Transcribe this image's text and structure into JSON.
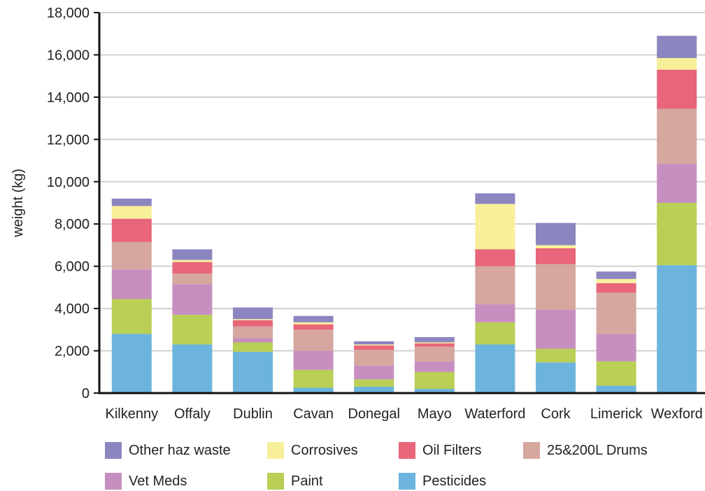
{
  "chart_data": {
    "type": "bar",
    "stacked": true,
    "title": "",
    "xlabel": "",
    "ylabel": "weight (kg)",
    "ylim": [
      0,
      18000
    ],
    "yticks": [
      0,
      2000,
      4000,
      6000,
      8000,
      10000,
      12000,
      14000,
      16000,
      18000
    ],
    "ytick_labels": [
      "0",
      "2,000",
      "4,000",
      "6,000",
      "8,000",
      "10,000",
      "12,000",
      "14,000",
      "16,000",
      "18,000"
    ],
    "grid": true,
    "legend_position": "bottom",
    "categories": [
      "Kilkenny",
      "Offaly",
      "Dublin",
      "Cavan",
      "Donegal",
      "Mayo",
      "Waterford",
      "Cork",
      "Limerick",
      "Wexford"
    ],
    "series": [
      {
        "name": "Pesticides",
        "color": "#6cb4de",
        "values": [
          2800,
          2300,
          1950,
          250,
          300,
          200,
          2300,
          1450,
          350,
          6050
        ]
      },
      {
        "name": "Paint",
        "color": "#b9cf55",
        "values": [
          1650,
          1400,
          450,
          850,
          350,
          800,
          1050,
          650,
          1150,
          2950
        ]
      },
      {
        "name": "Vet Meds",
        "color": "#c68fbf",
        "values": [
          1400,
          1450,
          200,
          900,
          650,
          500,
          850,
          1850,
          1300,
          1850
        ]
      },
      {
        "name": "25&200L Drums",
        "color": "#d5a79f",
        "values": [
          1300,
          500,
          550,
          1000,
          750,
          700,
          1800,
          2150,
          1950,
          2600
        ]
      },
      {
        "name": "Oil Filters",
        "color": "#e8657a",
        "values": [
          1100,
          550,
          300,
          250,
          200,
          150,
          800,
          750,
          450,
          1850
        ]
      },
      {
        "name": "Corrosives",
        "color": "#f8ef9a",
        "values": [
          600,
          100,
          50,
          100,
          50,
          50,
          2150,
          150,
          200,
          550
        ]
      },
      {
        "name": "Other haz waste",
        "color": "#8b86c0",
        "values": [
          350,
          500,
          550,
          300,
          150,
          250,
          500,
          1050,
          350,
          1050
        ]
      }
    ]
  },
  "legend": {
    "items": [
      {
        "label": "Other haz waste",
        "color": "#8b86c0"
      },
      {
        "label": "Corrosives",
        "color": "#f8ef9a"
      },
      {
        "label": "Oil Filters",
        "color": "#e8657a"
      },
      {
        "label": "25&200L Drums",
        "color": "#d5a79f"
      },
      {
        "label": "Vet Meds",
        "color": "#c68fbf"
      },
      {
        "label": "Paint",
        "color": "#b9cf55"
      },
      {
        "label": "Pesticides",
        "color": "#6cb4de"
      }
    ]
  }
}
